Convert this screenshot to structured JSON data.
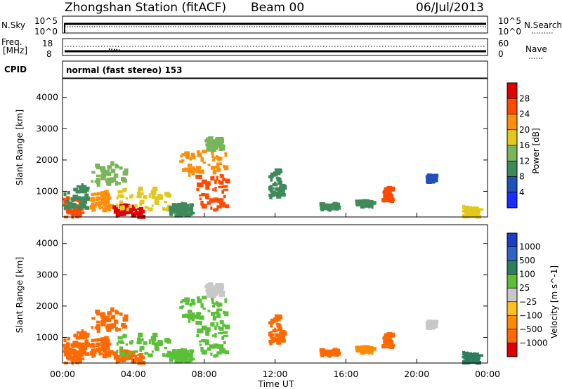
{
  "header": {
    "station": "Zhongshan Station (fitACF)",
    "beam": "Beam 00",
    "date": "06/Jul/2013"
  },
  "panels": {
    "nsky_label": "N.Sky",
    "nsky_top": "10^5",
    "nsky_bottom": "10^0",
    "nsearch_label": "N.Search",
    "nsearch_top": "10^5",
    "nsearch_bottom": "10^0",
    "freq_label_1": "Freq.",
    "freq_label_2": "[MHz]",
    "freq_top": "18",
    "freq_bottom": "8",
    "nave_label": "Nave",
    "nave_top": "60",
    "nave_bottom": "0",
    "cpid_label": "CPID",
    "cpid_text": "normal (fast stereo) 153"
  },
  "chart_data": [
    {
      "type": "heatmap",
      "name": "power",
      "ylabel": "Slant Range [km]",
      "xlabel": "",
      "colorbar_label": "Power [dB]",
      "ylim": [
        180,
        4600
      ],
      "yticks": [
        1000,
        2000,
        3000,
        4000
      ],
      "colorbar_ticks": [
        4,
        8,
        12,
        16,
        20,
        24,
        28
      ],
      "colorbar_range": [
        0,
        32
      ],
      "colorbar_colors": [
        "#1a2cff",
        "#2151b8",
        "#3f8a5a",
        "#7ab55a",
        "#e2c81c",
        "#ff8f0a",
        "#ff4a00",
        "#e00000"
      ]
    },
    {
      "type": "heatmap",
      "name": "velocity",
      "ylabel": "Slant Range [km]",
      "xlabel": "Time UT",
      "colorbar_label": "Velocity [m s^-1]",
      "ylim": [
        180,
        4600
      ],
      "yticks": [
        1000,
        2000,
        3000,
        4000
      ],
      "colorbar_ticks": [
        "1000",
        "500",
        "100",
        "25",
        "−25",
        "−100",
        "−500",
        "−1000"
      ],
      "colorbar_colors": [
        "#1a3fc2",
        "#2f63c8",
        "#2e7d5e",
        "#5cbf3a",
        "#c8c8c8",
        "#ffc020",
        "#ff8a00",
        "#ff6a00",
        "#e00000"
      ],
      "xticks": [
        "00:00",
        "04:00",
        "08:00",
        "12:00",
        "16:00",
        "20:00",
        "00:00"
      ],
      "xlim_hours": [
        0,
        24
      ]
    }
  ],
  "scatter_blobs": [
    {
      "t0": 0.0,
      "t1": 1.0,
      "r0": 180,
      "r1": 800,
      "pc": 6,
      "vc": 7
    },
    {
      "t0": 0.0,
      "t1": 1.3,
      "r0": 450,
      "r1": 1200,
      "pc": 2,
      "vc": 7
    },
    {
      "t0": 1.5,
      "t1": 2.6,
      "r0": 380,
      "r1": 1000,
      "pc": 5,
      "vc": 7
    },
    {
      "t0": 2.8,
      "t1": 4.5,
      "r0": 180,
      "r1": 550,
      "pc": 7,
      "vc": 7
    },
    {
      "t0": 3.0,
      "t1": 6.0,
      "r0": 400,
      "r1": 1100,
      "pc": 4,
      "vc": 3
    },
    {
      "t0": 6.0,
      "t1": 7.2,
      "r0": 200,
      "r1": 600,
      "pc": 2,
      "vc": 3
    },
    {
      "t0": 7.5,
      "t1": 9.2,
      "r0": 400,
      "r1": 1500,
      "pc": 6,
      "vc": 3
    },
    {
      "t0": 6.5,
      "t1": 9.2,
      "r0": 1500,
      "r1": 2300,
      "pc": 5,
      "vc": 3
    },
    {
      "t0": 8.0,
      "t1": 9.0,
      "r0": 2300,
      "r1": 2700,
      "pc": 3,
      "vc": 4
    },
    {
      "t0": 1.6,
      "t1": 3.5,
      "r0": 1200,
      "r1": 1900,
      "pc": 3,
      "vc": 7
    },
    {
      "t0": 11.6,
      "t1": 12.4,
      "r0": 800,
      "r1": 1700,
      "pc": 2,
      "vc": 7
    },
    {
      "t0": 14.5,
      "t1": 15.5,
      "r0": 400,
      "r1": 600,
      "pc": 2,
      "vc": 7
    },
    {
      "t0": 16.5,
      "t1": 17.5,
      "r0": 500,
      "r1": 700,
      "pc": 2,
      "vc": 6
    },
    {
      "t0": 18.0,
      "t1": 18.5,
      "r0": 700,
      "r1": 1100,
      "pc": 6,
      "vc": 7
    },
    {
      "t0": 20.5,
      "t1": 21.0,
      "r0": 1300,
      "r1": 1500,
      "pc": 1,
      "vc": 4
    },
    {
      "t0": 22.5,
      "t1": 23.5,
      "r0": 180,
      "r1": 500,
      "pc": 4,
      "vc": 2
    }
  ]
}
